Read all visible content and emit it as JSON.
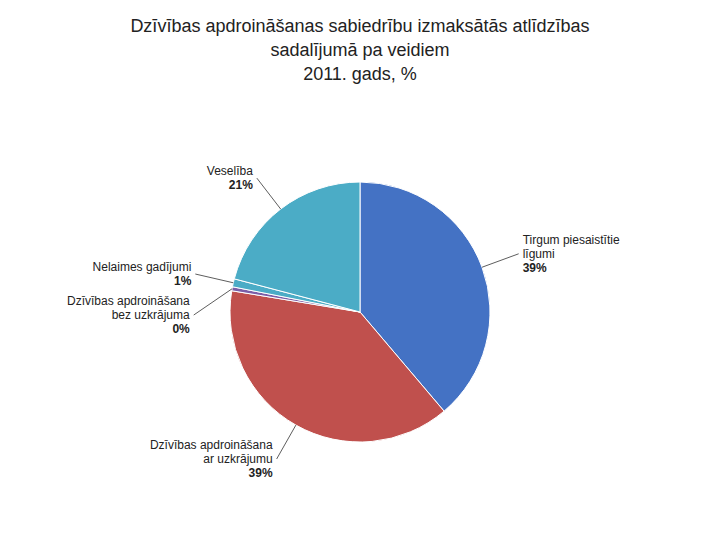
{
  "chart_data": {
    "type": "pie",
    "title": "Dzīvības apdroināšanas sabiedrību izmaksātās atlīdzības\nsadalījumā pa veidiem\n2011. gads, %",
    "categories": [
      "Tirgum piesaistītie\nlīgumi",
      "Dzīvības apdroināšana\nar uzkrājumu",
      "Dzīvības apdroināšana\nbez uzkrājuma",
      "Nelaimes gadījumi",
      "Veselība"
    ],
    "values": [
      39,
      39,
      0.5,
      1,
      21
    ],
    "value_labels": [
      "39%",
      "39%",
      "0%",
      "1%",
      "21%"
    ],
    "colors": [
      "#4472C4",
      "#C0504D",
      "#7B5EA7",
      "#4BACC6",
      "#4BACC6"
    ],
    "data_labels": true
  }
}
